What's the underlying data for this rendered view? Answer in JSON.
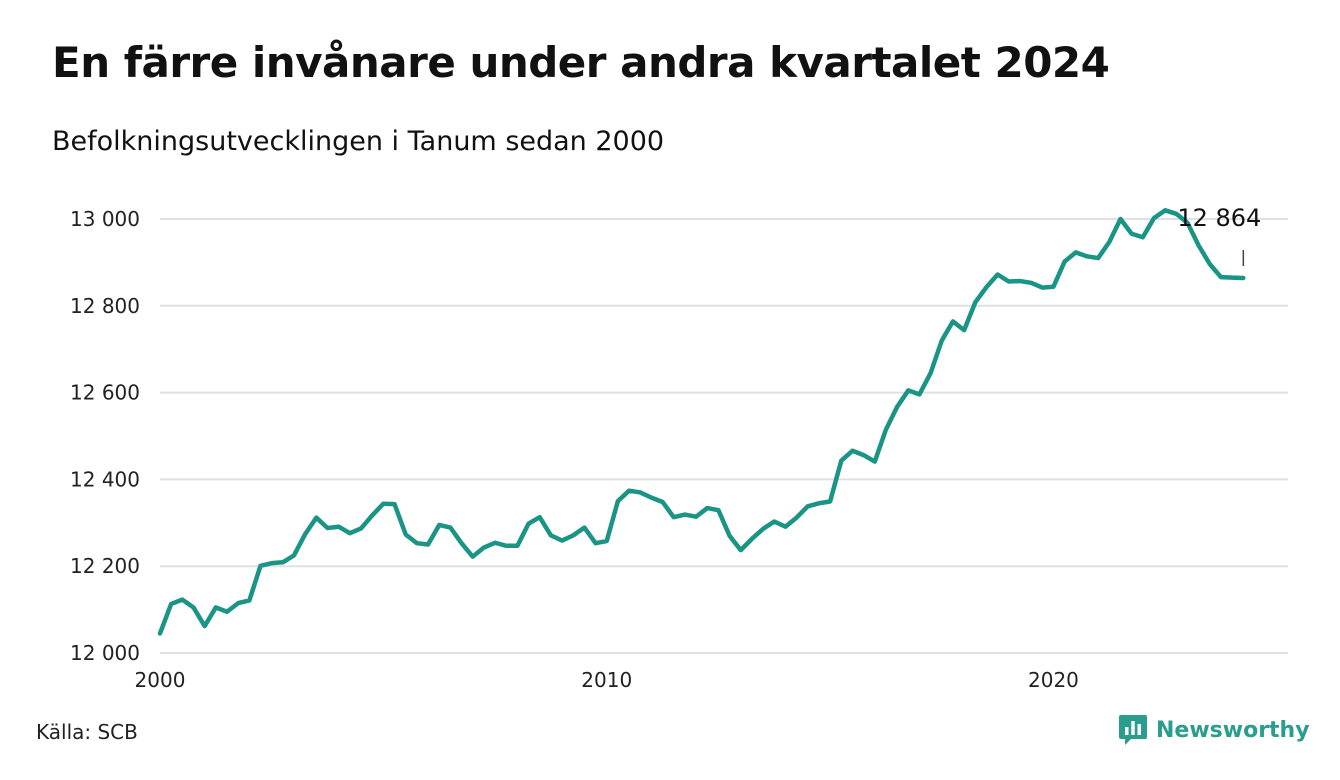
{
  "title": "En färre invånare under andra kvartalet 2024",
  "subtitle": "Befolkningsutvecklingen i Tanum sedan 2000",
  "source": "Källa: SCB",
  "brand": {
    "name": "Newsworthy",
    "color": "#2a9d8f",
    "icon": "newsworthy-logo-icon"
  },
  "colors": {
    "line": "#1a9485",
    "grid": "#e0e0e0"
  },
  "chart_data": {
    "type": "line",
    "title": "En färre invånare under andra kvartalet 2024",
    "subtitle": "Befolkningsutvecklingen i Tanum sedan 2000",
    "xlabel": "",
    "ylabel": "",
    "x_ticks": [
      {
        "value": 2000,
        "label": "2000"
      },
      {
        "value": 2010,
        "label": "2010"
      },
      {
        "value": 2020,
        "label": "2020"
      }
    ],
    "y_ticks": [
      {
        "value": 12000,
        "label": "12 000"
      },
      {
        "value": 12200,
        "label": "12 200"
      },
      {
        "value": 12400,
        "label": "12 400"
      },
      {
        "value": 12600,
        "label": "12 600"
      },
      {
        "value": 12800,
        "label": "12 800"
      },
      {
        "value": 13000,
        "label": "13 000"
      }
    ],
    "xlim": [
      2000,
      2025.25
    ],
    "ylim": [
      12000,
      13000
    ],
    "grid": true,
    "last_value_label": "12 864",
    "series": [
      {
        "x": [
          2000.0,
          2000.25,
          2000.5,
          2000.75,
          2001.0,
          2001.25,
          2001.5,
          2001.75,
          2002.0,
          2002.25,
          2002.5,
          2002.75,
          2003.0,
          2003.25,
          2003.5,
          2003.75,
          2004.0,
          2004.25,
          2004.5,
          2004.75,
          2005.0,
          2005.25,
          2005.5,
          2005.75,
          2006.0,
          2006.25,
          2006.5,
          2006.75,
          2007.0,
          2007.25,
          2007.5,
          2007.75,
          2008.0,
          2008.25,
          2008.5,
          2008.75,
          2009.0,
          2009.25,
          2009.5,
          2009.75,
          2010.0,
          2010.25,
          2010.5,
          2010.75,
          2011.0,
          2011.25,
          2011.5,
          2011.75,
          2012.0,
          2012.25,
          2012.5,
          2012.75,
          2013.0,
          2013.25,
          2013.5,
          2013.75,
          2014.0,
          2014.25,
          2014.5,
          2014.75,
          2015.0,
          2015.25,
          2015.5,
          2015.75,
          2016.0,
          2016.25,
          2016.5,
          2016.75,
          2017.0,
          2017.25,
          2017.5,
          2017.75,
          2018.0,
          2018.25,
          2018.5,
          2018.75,
          2019.0,
          2019.25,
          2019.5,
          2019.75,
          2020.0,
          2020.25,
          2020.5,
          2020.75,
          2021.0,
          2021.25,
          2021.5,
          2021.75,
          2022.0,
          2022.25,
          2022.5,
          2022.75,
          2023.0,
          2023.25,
          2023.5,
          2023.75,
          2024.0,
          2024.25
        ],
        "values": [
          12045,
          12113,
          12123,
          12105,
          12062,
          12105,
          12095,
          12115,
          12121,
          12201,
          12207,
          12209,
          12225,
          12274,
          12312,
          12288,
          12291,
          12276,
          12287,
          12317,
          12344,
          12343,
          12273,
          12253,
          12250,
          12295,
          12289,
          12253,
          12222,
          12243,
          12254,
          12247,
          12247,
          12298,
          12313,
          12271,
          12259,
          12271,
          12289,
          12253,
          12258,
          12350,
          12374,
          12370,
          12358,
          12348,
          12313,
          12319,
          12314,
          12334,
          12329,
          12270,
          12237,
          12263,
          12286,
          12303,
          12291,
          12312,
          12338,
          12345,
          12349,
          12443,
          12466,
          12456,
          12441,
          12515,
          12567,
          12605,
          12596,
          12645,
          12720,
          12764,
          12744,
          12808,
          12843,
          12872,
          12856,
          12857,
          12853,
          12842,
          12844,
          12902,
          12923,
          12914,
          12910,
          12947,
          13000,
          12966,
          12958,
          13002,
          13020,
          13012,
          12991,
          12939,
          12896,
          12866,
          12865,
          12864
        ]
      }
    ]
  }
}
